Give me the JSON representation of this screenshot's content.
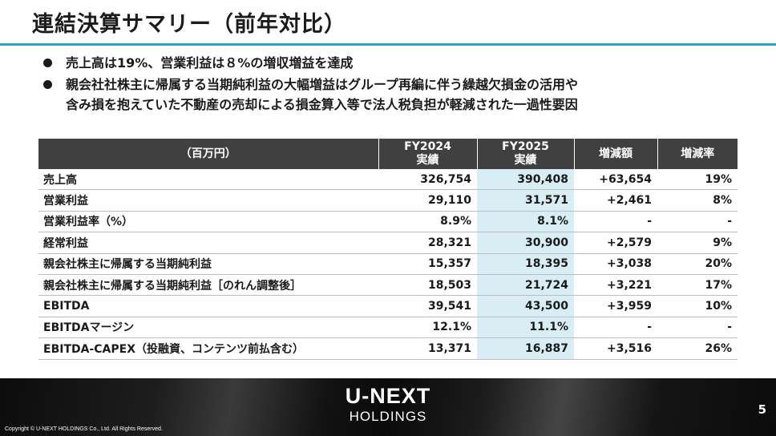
{
  "slide": {
    "title": "連結決算サマリー（前年対比）",
    "bullets": [
      [
        "売上高は19%、営業利益は８%の増収増益を達成"
      ],
      [
        "親会社社株主に帰属する当期純利益の大幅増益はグループ再編に伴う繰越欠損金の活用や",
        "含み損を抱えていた不動産の売却による損金算入等で法人税負担が軽減された一過性要因"
      ]
    ]
  },
  "table": {
    "header": {
      "unit": "（百万円）",
      "fy2024_line1": "FY2024",
      "fy2024_line2": "実績",
      "fy2025_line1": "FY2025",
      "fy2025_line2": "実績",
      "change": "増減額",
      "rate": "増減率"
    },
    "rows": [
      {
        "label": "売上高",
        "fy2024": "326,754",
        "fy2025": "390,408",
        "change": "+63,654",
        "rate": "19%"
      },
      {
        "label": "営業利益",
        "fy2024": "29,110",
        "fy2025": "31,571",
        "change": "+2,461",
        "rate": "8%"
      },
      {
        "label": "営業利益率（%）",
        "fy2024": "8.9%",
        "fy2025": "8.1%",
        "change": "-",
        "rate": "-"
      },
      {
        "label": "経常利益",
        "fy2024": "28,321",
        "fy2025": "30,900",
        "change": "+2,579",
        "rate": "9%"
      },
      {
        "label": "親会社株主に帰属する当期純利益",
        "fy2024": "15,357",
        "fy2025": "18,395",
        "change": "+3,038",
        "rate": "20%"
      },
      {
        "label": "親会社株主に帰属する当期純利益［のれん調整後］",
        "fy2024": "18,503",
        "fy2025": "21,724",
        "change": "+3,221",
        "rate": "17%"
      },
      {
        "label": "EBITDA",
        "fy2024": "39,541",
        "fy2025": "43,500",
        "change": "+3,959",
        "rate": "10%"
      },
      {
        "label": "EBITDAマージン",
        "fy2024": "12.1%",
        "fy2025": "11.1%",
        "change": "-",
        "rate": "-"
      },
      {
        "label": "EBITDA-CAPEX（投融資、コンテンツ前払含む）",
        "fy2024": "13,371",
        "fy2025": "16,887",
        "change": "+3,516",
        "rate": "26%"
      }
    ]
  },
  "footer": {
    "logo_main": "U-NEXT",
    "logo_sub": "HOLDINGS",
    "copyright": "Copyright © U-NEXT HOLDINGS Co., Ltd. All Rights Reserved.",
    "page_number": "5"
  }
}
